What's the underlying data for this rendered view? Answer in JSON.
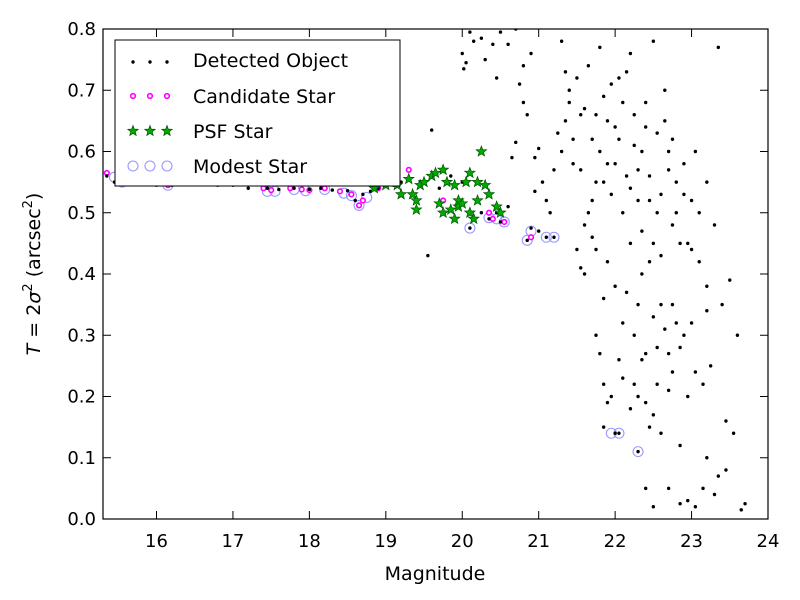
{
  "chart_data": {
    "type": "scatter",
    "title": "",
    "xlabel": "Magnitude",
    "ylabel": "T = 2σ² (arcsec²)",
    "ylabel_parts": {
      "lead": "T",
      "eq": " = 2",
      "sym": "σ",
      "sup1": "2",
      "mid": " (arcsec",
      "sup2": "2",
      "tail": ")"
    },
    "xlim": [
      15.3,
      24
    ],
    "ylim": [
      0,
      0.8
    ],
    "x_ticks": [
      16,
      17,
      18,
      19,
      20,
      21,
      22,
      23,
      24
    ],
    "y_ticks": [
      0.0,
      0.1,
      0.2,
      0.3,
      0.4,
      0.5,
      0.6,
      0.7,
      0.8
    ],
    "grid": false,
    "legend_position": "upper-left",
    "colors": {
      "detected": "#000000",
      "candidate": "#ff00ff",
      "psf_fill": "#00aa00",
      "psf_edge": "#005500",
      "modest": "#9999ff"
    },
    "series": [
      {
        "name": "Detected Object",
        "marker": "dot",
        "points": [
          [
            15.35,
            0.56
          ],
          [
            15.45,
            0.55
          ],
          [
            15.6,
            0.555
          ],
          [
            15.8,
            0.55
          ],
          [
            16.0,
            0.545
          ],
          [
            16.2,
            0.545
          ],
          [
            16.5,
            0.55
          ],
          [
            16.8,
            0.545
          ],
          [
            17.0,
            0.545
          ],
          [
            17.2,
            0.54
          ],
          [
            17.45,
            0.54
          ],
          [
            17.6,
            0.538
          ],
          [
            17.8,
            0.54
          ],
          [
            18.0,
            0.538
          ],
          [
            18.15,
            0.54
          ],
          [
            18.3,
            0.537
          ],
          [
            18.5,
            0.536
          ],
          [
            18.6,
            0.52
          ],
          [
            18.7,
            0.53
          ],
          [
            18.8,
            0.535
          ],
          [
            18.9,
            0.54
          ],
          [
            19.0,
            0.55
          ],
          [
            19.1,
            0.545
          ],
          [
            19.2,
            0.55
          ],
          [
            19.3,
            0.555
          ],
          [
            19.45,
            0.55
          ],
          [
            19.55,
            0.43
          ],
          [
            19.6,
            0.635
          ],
          [
            19.7,
            0.54
          ],
          [
            19.85,
            0.56
          ],
          [
            20.0,
            0.55
          ],
          [
            20.1,
            0.475
          ],
          [
            20.25,
            0.5
          ],
          [
            20.35,
            0.49
          ],
          [
            20.45,
            0.5
          ],
          [
            20.5,
            0.485
          ],
          [
            20.6,
            0.51
          ],
          [
            20.65,
            0.59
          ],
          [
            20.7,
            0.615
          ],
          [
            20.8,
            0.68
          ],
          [
            20.85,
            0.455
          ],
          [
            20.9,
            0.475
          ],
          [
            20.95,
            0.535
          ],
          [
            21.0,
            0.47
          ],
          [
            21.1,
            0.46
          ],
          [
            21.2,
            0.46
          ],
          [
            20.15,
            0.78
          ],
          [
            20.0,
            0.76
          ],
          [
            20.02,
            0.735
          ],
          [
            20.05,
            0.745
          ],
          [
            20.1,
            0.795
          ],
          [
            20.25,
            0.785
          ],
          [
            20.3,
            0.75
          ],
          [
            20.4,
            0.775
          ],
          [
            20.45,
            0.72
          ],
          [
            20.5,
            0.795
          ],
          [
            20.6,
            0.775
          ],
          [
            20.7,
            0.8
          ],
          [
            20.75,
            0.71
          ],
          [
            20.8,
            0.74
          ],
          [
            20.85,
            0.66
          ],
          [
            20.9,
            0.76
          ],
          [
            20.95,
            0.59
          ],
          [
            21.0,
            0.605
          ],
          [
            21.05,
            0.55
          ],
          [
            21.1,
            0.52
          ],
          [
            21.15,
            0.5
          ],
          [
            21.2,
            0.57
          ],
          [
            21.25,
            0.63
          ],
          [
            21.3,
            0.78
          ],
          [
            21.35,
            0.73
          ],
          [
            21.4,
            0.68
          ],
          [
            21.45,
            0.58
          ],
          [
            21.5,
            0.72
          ],
          [
            21.55,
            0.66
          ],
          [
            21.6,
            0.48
          ],
          [
            21.65,
            0.5
          ],
          [
            21.7,
            0.62
          ],
          [
            21.75,
            0.55
          ],
          [
            21.8,
            0.77
          ],
          [
            21.85,
            0.69
          ],
          [
            21.9,
            0.58
          ],
          [
            21.95,
            0.53
          ],
          [
            22.0,
            0.64
          ],
          [
            22.05,
            0.72
          ],
          [
            22.1,
            0.5
          ],
          [
            22.15,
            0.56
          ],
          [
            22.2,
            0.76
          ],
          [
            22.25,
            0.61
          ],
          [
            22.3,
            0.52
          ],
          [
            22.35,
            0.47
          ],
          [
            22.4,
            0.68
          ],
          [
            22.45,
            0.56
          ],
          [
            22.5,
            0.78
          ],
          [
            22.55,
            0.63
          ],
          [
            22.6,
            0.53
          ],
          [
            22.65,
            0.7
          ],
          [
            22.7,
            0.6
          ],
          [
            22.75,
            0.48
          ],
          [
            22.8,
            0.55
          ],
          [
            22.9,
            0.58
          ],
          [
            23.0,
            0.52
          ],
          [
            23.05,
            0.6
          ],
          [
            23.1,
            0.5
          ],
          [
            23.2,
            0.55
          ],
          [
            23.3,
            0.48
          ],
          [
            23.35,
            0.77
          ],
          [
            21.3,
            0.6
          ],
          [
            21.35,
            0.65
          ],
          [
            21.4,
            0.7
          ],
          [
            21.45,
            0.62
          ],
          [
            21.55,
            0.57
          ],
          [
            21.6,
            0.67
          ],
          [
            21.65,
            0.74
          ],
          [
            21.7,
            0.52
          ],
          [
            21.75,
            0.66
          ],
          [
            21.8,
            0.6
          ],
          [
            21.85,
            0.55
          ],
          [
            21.9,
            0.65
          ],
          [
            21.95,
            0.71
          ],
          [
            22.0,
            0.58
          ],
          [
            22.05,
            0.62
          ],
          [
            22.1,
            0.68
          ],
          [
            22.15,
            0.73
          ],
          [
            22.2,
            0.54
          ],
          [
            22.25,
            0.66
          ],
          [
            22.3,
            0.57
          ],
          [
            22.35,
            0.6
          ],
          [
            22.4,
            0.64
          ],
          [
            22.45,
            0.52
          ],
          [
            22.5,
            0.45
          ],
          [
            22.55,
            0.5
          ],
          [
            22.6,
            0.43
          ],
          [
            22.65,
            0.65
          ],
          [
            22.7,
            0.57
          ],
          [
            22.75,
            0.62
          ],
          [
            22.8,
            0.5
          ],
          [
            22.85,
            0.45
          ],
          [
            22.9,
            0.53
          ],
          [
            22.95,
            0.45
          ],
          [
            23.0,
            0.44
          ],
          [
            23.1,
            0.42
          ],
          [
            23.2,
            0.38
          ],
          [
            23.5,
            0.39
          ],
          [
            21.5,
            0.44
          ],
          [
            21.55,
            0.41
          ],
          [
            21.6,
            0.4
          ],
          [
            21.7,
            0.46
          ],
          [
            21.75,
            0.44
          ],
          [
            21.85,
            0.36
          ],
          [
            21.9,
            0.42
          ],
          [
            22.0,
            0.38
          ],
          [
            22.1,
            0.32
          ],
          [
            22.15,
            0.37
          ],
          [
            22.2,
            0.45
          ],
          [
            22.25,
            0.3
          ],
          [
            22.3,
            0.35
          ],
          [
            22.35,
            0.4
          ],
          [
            22.4,
            0.27
          ],
          [
            22.45,
            0.42
          ],
          [
            22.5,
            0.33
          ],
          [
            22.55,
            0.28
          ],
          [
            22.6,
            0.35
          ],
          [
            22.65,
            0.31
          ],
          [
            22.7,
            0.27
          ],
          [
            22.75,
            0.35
          ],
          [
            22.8,
            0.32
          ],
          [
            22.85,
            0.28
          ],
          [
            22.9,
            0.3
          ],
          [
            23.0,
            0.32
          ],
          [
            23.2,
            0.34
          ],
          [
            23.4,
            0.35
          ],
          [
            23.6,
            0.3
          ],
          [
            21.75,
            0.3
          ],
          [
            21.8,
            0.27
          ],
          [
            21.85,
            0.22
          ],
          [
            21.9,
            0.19
          ],
          [
            21.95,
            0.2
          ],
          [
            22.05,
            0.26
          ],
          [
            22.1,
            0.23
          ],
          [
            22.2,
            0.18
          ],
          [
            22.25,
            0.22
          ],
          [
            22.3,
            0.2
          ],
          [
            22.35,
            0.26
          ],
          [
            22.4,
            0.19
          ],
          [
            22.45,
            0.15
          ],
          [
            22.5,
            0.17
          ],
          [
            22.55,
            0.22
          ],
          [
            22.6,
            0.14
          ],
          [
            22.7,
            0.21
          ],
          [
            22.75,
            0.24
          ],
          [
            22.85,
            0.12
          ],
          [
            22.95,
            0.2
          ],
          [
            23.05,
            0.24
          ],
          [
            23.15,
            0.22
          ],
          [
            23.25,
            0.25
          ],
          [
            23.45,
            0.16
          ],
          [
            23.55,
            0.14
          ],
          [
            21.85,
            0.15
          ],
          [
            22.0,
            0.14
          ],
          [
            22.05,
            0.14
          ],
          [
            22.3,
            0.11
          ],
          [
            22.4,
            0.05
          ],
          [
            22.5,
            0.02
          ],
          [
            22.7,
            0.05
          ],
          [
            22.85,
            0.025
          ],
          [
            22.95,
            0.03
          ],
          [
            23.05,
            0.02
          ],
          [
            23.15,
            0.05
          ],
          [
            23.2,
            0.1
          ],
          [
            23.3,
            0.04
          ],
          [
            23.35,
            0.07
          ],
          [
            23.45,
            0.08
          ],
          [
            23.65,
            0.015
          ],
          [
            23.7,
            0.025
          ]
        ]
      },
      {
        "name": "Candidate Star",
        "marker": "small-circle",
        "points": [
          [
            15.35,
            0.565
          ],
          [
            15.5,
            0.56
          ],
          [
            15.7,
            0.555
          ],
          [
            16.15,
            0.545
          ],
          [
            17.4,
            0.54
          ],
          [
            17.5,
            0.537
          ],
          [
            17.75,
            0.54
          ],
          [
            17.9,
            0.538
          ],
          [
            18.0,
            0.537
          ],
          [
            18.2,
            0.54
          ],
          [
            18.4,
            0.535
          ],
          [
            18.55,
            0.53
          ],
          [
            18.65,
            0.512
          ],
          [
            18.7,
            0.52
          ],
          [
            18.9,
            0.54
          ],
          [
            19.3,
            0.57
          ],
          [
            19.75,
            0.52
          ],
          [
            20.35,
            0.5
          ],
          [
            20.4,
            0.49
          ],
          [
            20.55,
            0.485
          ],
          [
            20.9,
            0.46
          ]
        ]
      },
      {
        "name": "PSF Star",
        "marker": "star",
        "points": [
          [
            18.85,
            0.54
          ],
          [
            19.0,
            0.545
          ],
          [
            19.15,
            0.545
          ],
          [
            19.2,
            0.53
          ],
          [
            19.3,
            0.555
          ],
          [
            19.35,
            0.53
          ],
          [
            19.4,
            0.52
          ],
          [
            19.4,
            0.505
          ],
          [
            19.45,
            0.545
          ],
          [
            19.5,
            0.55
          ],
          [
            19.6,
            0.56
          ],
          [
            19.65,
            0.565
          ],
          [
            19.7,
            0.515
          ],
          [
            19.75,
            0.5
          ],
          [
            19.75,
            0.57
          ],
          [
            19.8,
            0.55
          ],
          [
            19.85,
            0.505
          ],
          [
            19.9,
            0.49
          ],
          [
            19.9,
            0.545
          ],
          [
            19.95,
            0.51
          ],
          [
            19.95,
            0.52
          ],
          [
            20.0,
            0.515
          ],
          [
            20.05,
            0.55
          ],
          [
            20.1,
            0.565
          ],
          [
            20.1,
            0.5
          ],
          [
            20.15,
            0.49
          ],
          [
            20.2,
            0.52
          ],
          [
            20.2,
            0.55
          ],
          [
            20.25,
            0.6
          ],
          [
            20.3,
            0.545
          ],
          [
            20.35,
            0.53
          ],
          [
            20.45,
            0.51
          ],
          [
            20.5,
            0.5
          ]
        ]
      },
      {
        "name": "Modest Star",
        "marker": "open-circle",
        "points": [
          [
            15.45,
            0.558
          ],
          [
            15.55,
            0.55
          ],
          [
            16.15,
            0.545
          ],
          [
            17.45,
            0.535
          ],
          [
            17.55,
            0.535
          ],
          [
            17.8,
            0.538
          ],
          [
            17.95,
            0.536
          ],
          [
            18.2,
            0.538
          ],
          [
            18.45,
            0.532
          ],
          [
            18.55,
            0.528
          ],
          [
            18.65,
            0.512
          ],
          [
            18.75,
            0.525
          ],
          [
            20.1,
            0.475
          ],
          [
            20.35,
            0.492
          ],
          [
            20.45,
            0.49
          ],
          [
            20.55,
            0.485
          ],
          [
            20.85,
            0.455
          ],
          [
            20.9,
            0.47
          ],
          [
            21.1,
            0.46
          ],
          [
            21.2,
            0.46
          ],
          [
            21.95,
            0.14
          ],
          [
            22.05,
            0.14
          ],
          [
            22.3,
            0.11
          ]
        ]
      }
    ]
  }
}
